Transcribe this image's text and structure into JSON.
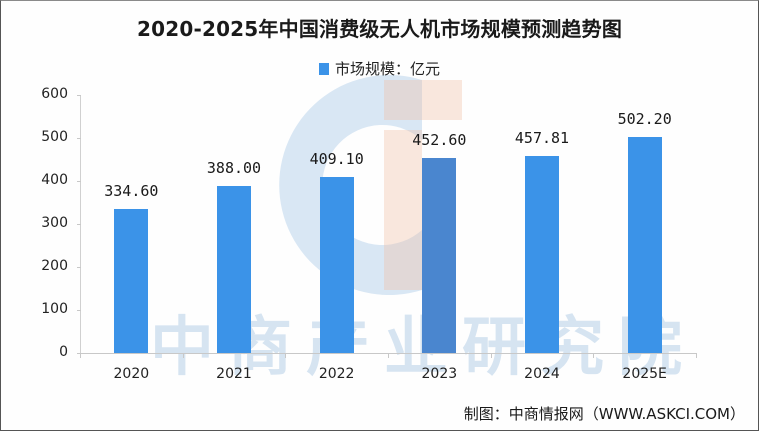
{
  "chart_data": {
    "type": "bar",
    "title": "2020-2025年中国消费级无人机市场规模预测趋势图",
    "legend": [
      "市场规模：亿元"
    ],
    "legend_position": "top",
    "categories": [
      "2020",
      "2021",
      "2022",
      "2023",
      "2024",
      "2025E"
    ],
    "series": [
      {
        "name": "市场规模：亿元",
        "values": [
          334.6,
          388.0,
          409.1,
          452.6,
          457.81,
          502.2
        ]
      }
    ],
    "data_labels": [
      "334.60",
      "388.00",
      "409.10",
      "452.60",
      "457.81",
      "502.20"
    ],
    "xlabel": "",
    "ylabel": "",
    "ylim": [
      0,
      600
    ],
    "yticks": [
      "0",
      "100",
      "200",
      "300",
      "400",
      "500",
      "600"
    ],
    "grid": false,
    "bar_color": "#3b93e8"
  },
  "title": "2020-2025年中国消费级无人机市场规模预测趋势图",
  "legend": {
    "label": "市场规模：亿元",
    "color": "#3b93e8"
  },
  "watermark": "中商产业研究院",
  "source": "制图：中商情报网（WWW.ASKCI.COM）"
}
